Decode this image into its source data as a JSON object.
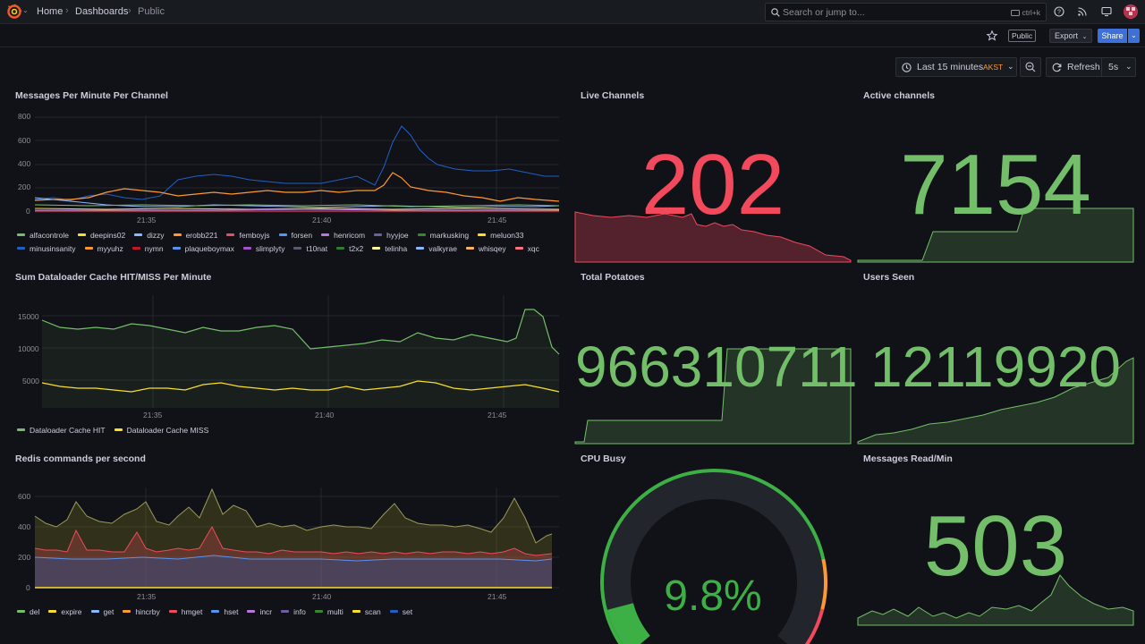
{
  "nav": {
    "breadcrumbs": [
      "Home",
      "Dashboards",
      "Public"
    ],
    "search_placeholder": "Search or jump to...",
    "search_shortcut": "ctrl+k",
    "icons": [
      "help-icon",
      "rss-icon",
      "monitor-icon",
      "avatar"
    ]
  },
  "toolbar": {
    "tag": "Public",
    "export_label": "Export",
    "share_label": "Share"
  },
  "timepicker": {
    "range": "Last 15 minutes",
    "timezone": "AKST",
    "refresh_label": "Refresh",
    "refresh_interval": "5s"
  },
  "colors": {
    "bg": "#111217",
    "grid": "#25272d",
    "red": "#f2495c",
    "green": "#73bf69",
    "yellow": "#fade2a",
    "orange": "#ff9830",
    "blue": "#5794f2",
    "brand": "#f05a28"
  },
  "panels": {
    "mpm": {
      "title": "Messages Per Minute Per Channel",
      "yticks": [
        "800",
        "600",
        "400",
        "200",
        "0"
      ],
      "xticks": [
        "21:35",
        "21:40",
        "21:45"
      ],
      "legend": [
        {
          "name": "alfacontrole",
          "color": "#73bf69"
        },
        {
          "name": "deepins02",
          "color": "#fade2a"
        },
        {
          "name": "dizzy",
          "color": "#8ab8ff"
        },
        {
          "name": "erobb221",
          "color": "#ff9830"
        },
        {
          "name": "femboyjs",
          "color": "#f2495c"
        },
        {
          "name": "forsen",
          "color": "#5794f2"
        },
        {
          "name": "henricom",
          "color": "#b877d9"
        },
        {
          "name": "hyyjoe",
          "color": "#705da0"
        },
        {
          "name": "markusking",
          "color": "#37872d"
        },
        {
          "name": "meluon33",
          "color": "#fade2a"
        },
        {
          "name": "minusinsanity",
          "color": "#1f60c4"
        },
        {
          "name": "myyuhz",
          "color": "#ff9830"
        },
        {
          "name": "nymn",
          "color": "#c4162a"
        },
        {
          "name": "plaqueboymax",
          "color": "#5794f2"
        },
        {
          "name": "slimplyty",
          "color": "#a352cc"
        },
        {
          "name": "t10nat",
          "color": "#5a5a6e"
        },
        {
          "name": "t2x2",
          "color": "#2e7d32"
        },
        {
          "name": "telinha",
          "color": "#fff899"
        },
        {
          "name": "valkyrae",
          "color": "#8ab8ff"
        },
        {
          "name": "whisqey",
          "color": "#ffb357"
        },
        {
          "name": "xqc",
          "color": "#ff7383"
        }
      ]
    },
    "cache": {
      "title": "Sum Dataloader Cache HIT/MISS Per Minute",
      "yticks": [
        "15000",
        "10000",
        "5000"
      ],
      "xticks": [
        "21:35",
        "21:40",
        "21:45"
      ],
      "legend": [
        {
          "name": "Dataloader Cache HIT",
          "color": "#73bf69"
        },
        {
          "name": "Dataloader Cache MISS",
          "color": "#fade2a"
        }
      ]
    },
    "redis": {
      "title": "Redis commands per second",
      "yticks": [
        "600",
        "400",
        "200",
        "0"
      ],
      "xticks": [
        "21:35",
        "21:40",
        "21:45"
      ],
      "legend": [
        {
          "name": "del",
          "color": "#73bf69"
        },
        {
          "name": "expire",
          "color": "#fade2a"
        },
        {
          "name": "get",
          "color": "#8ab8ff"
        },
        {
          "name": "hincrby",
          "color": "#ff9830"
        },
        {
          "name": "hmget",
          "color": "#f2495c"
        },
        {
          "name": "hset",
          "color": "#5794f2"
        },
        {
          "name": "incr",
          "color": "#b877d9"
        },
        {
          "name": "info",
          "color": "#705da0"
        },
        {
          "name": "multi",
          "color": "#37872d"
        },
        {
          "name": "scan",
          "color": "#fade2a"
        },
        {
          "name": "set",
          "color": "#1f60c4"
        }
      ]
    },
    "live": {
      "title": "Live Channels",
      "value": "202",
      "color": "#f2495c"
    },
    "active": {
      "title": "Active channels",
      "value": "7154",
      "color": "#73bf69"
    },
    "potatoes": {
      "title": "Total Potatoes",
      "value": "966310711",
      "color": "#73bf69"
    },
    "users": {
      "title": "Users Seen",
      "value": "12119920",
      "color": "#73bf69"
    },
    "cpu": {
      "title": "CPU Busy",
      "value": "9.8%",
      "percent": 9.8,
      "color": "#3cb044"
    },
    "read": {
      "title": "Messages Read/Min",
      "value": "503",
      "color": "#73bf69"
    }
  }
}
